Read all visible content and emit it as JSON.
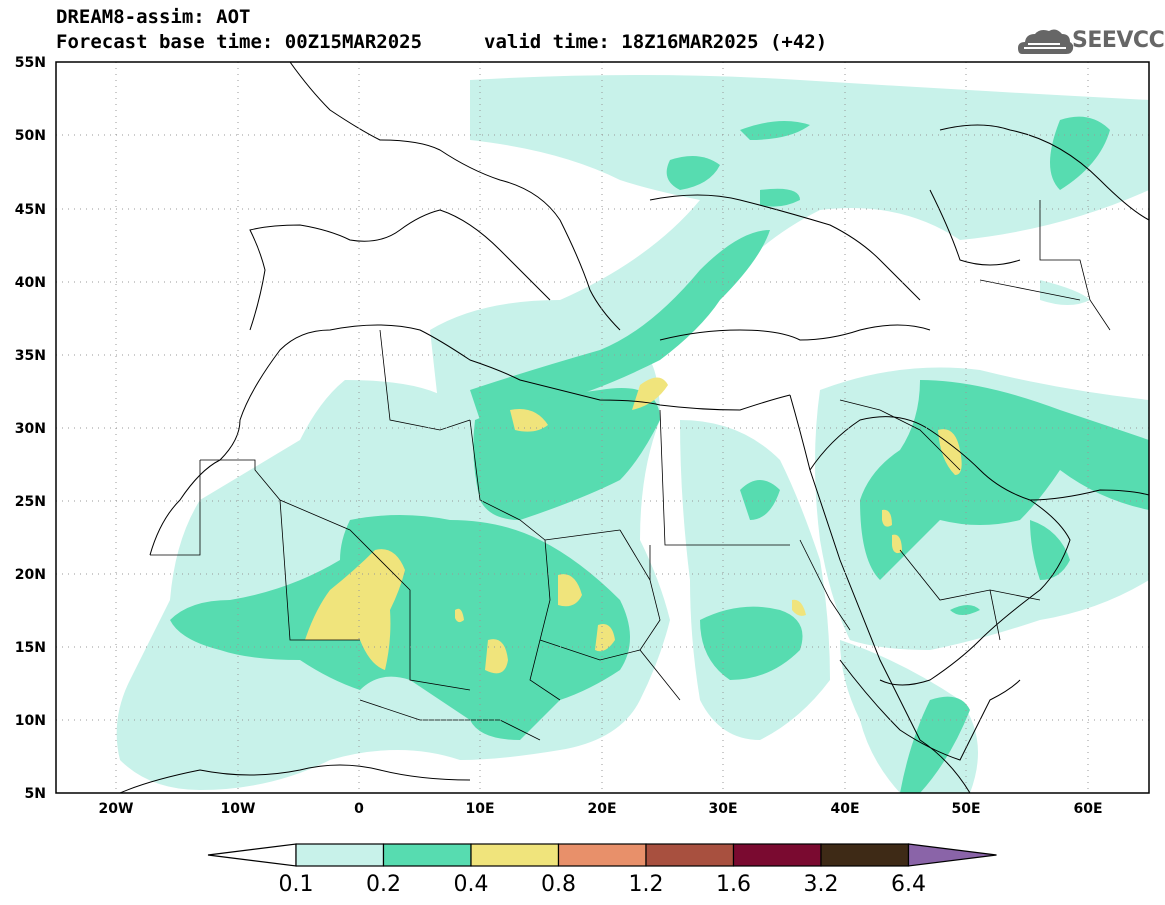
{
  "header": {
    "title": "DREAM8-assim: AOT",
    "base_time": "Forecast base time: 00Z15MAR2025",
    "valid_time": "valid time: 18Z16MAR2025 (+42)",
    "logo_text": "SEEVCCC",
    "logo_icon": "cloud-icon"
  },
  "axes": {
    "lat_labels": [
      "55N",
      "50N",
      "45N",
      "40N",
      "35N",
      "30N",
      "25N",
      "20N",
      "15N",
      "10N",
      "5N"
    ],
    "lon_labels": [
      "20W",
      "10W",
      "0",
      "10E",
      "20E",
      "30E",
      "40E",
      "50E",
      "60E"
    ]
  },
  "colorbar": {
    "labels": [
      "0.1",
      "0.2",
      "0.4",
      "0.8",
      "1.2",
      "1.6",
      "3.2",
      "6.4"
    ],
    "colors": [
      "#ffffff",
      "#c8f2ea",
      "#57dcb0",
      "#f0e47c",
      "#e8906a",
      "#a8503f",
      "#7a0a30",
      "#3e2a16",
      "#8a64a8"
    ]
  },
  "colors": {
    "land_line": "#000000",
    "background": "#ffffff"
  }
}
